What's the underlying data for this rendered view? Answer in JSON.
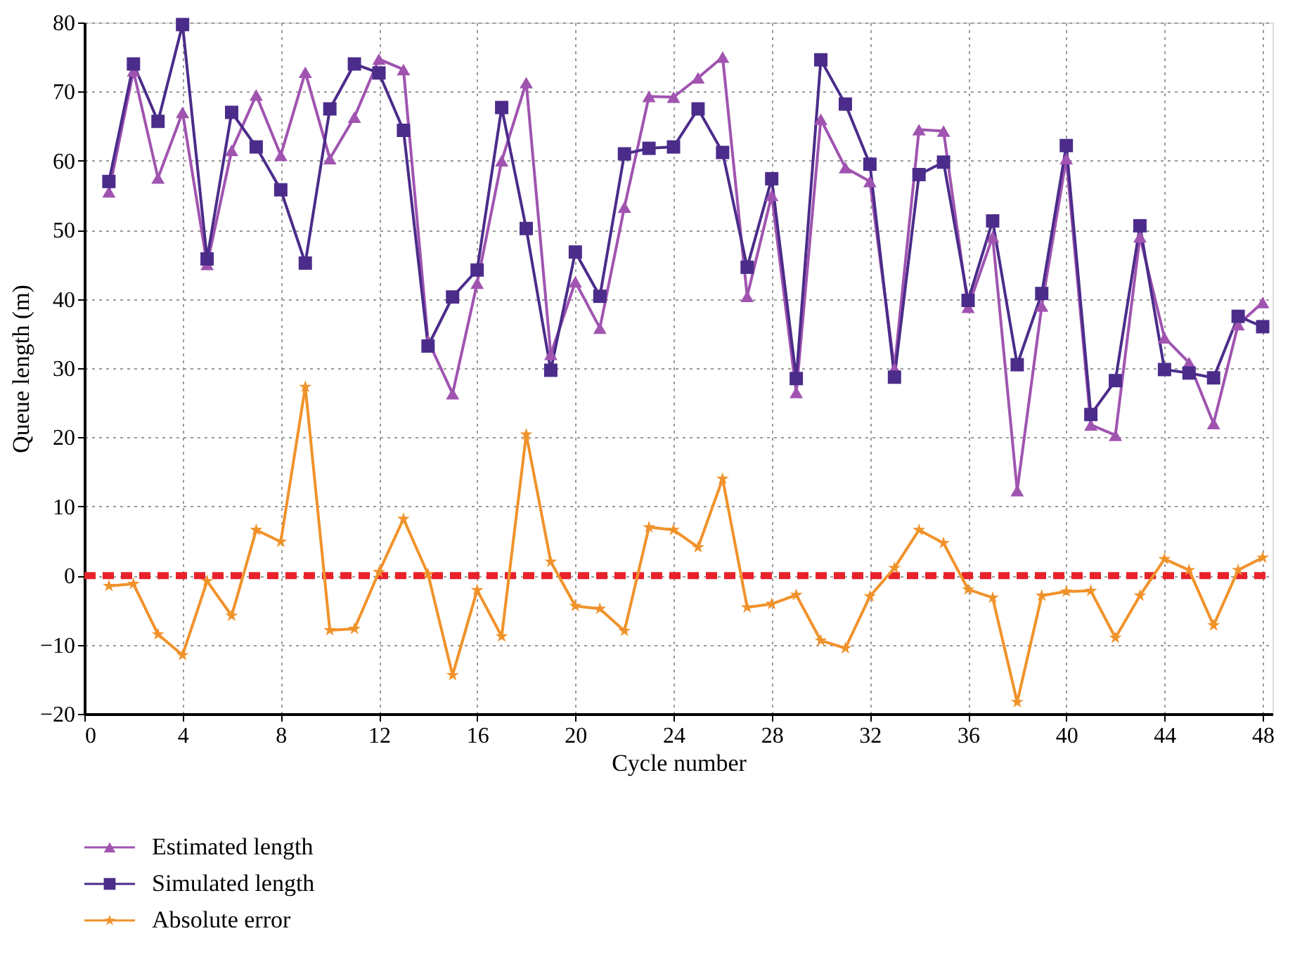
{
  "chart_data": {
    "type": "line",
    "xlabel": "Cycle number",
    "ylabel": "Queue length (m)",
    "x": [
      1,
      2,
      3,
      4,
      5,
      6,
      7,
      8,
      9,
      10,
      11,
      12,
      13,
      14,
      15,
      16,
      17,
      18,
      19,
      20,
      21,
      22,
      23,
      24,
      25,
      26,
      27,
      28,
      29,
      30,
      31,
      32,
      33,
      34,
      35,
      36,
      37,
      38,
      39,
      40,
      41,
      42,
      43,
      44,
      45,
      46,
      47,
      48
    ],
    "series": [
      {
        "name": "Estimated length",
        "color": "#a054b0",
        "marker": "triangle",
        "values": [
          55.5,
          73,
          57.5,
          67,
          45,
          61.5,
          69.5,
          60.8,
          72.8,
          60.3,
          66.3,
          74.7,
          73.2,
          34,
          26.3,
          42.3,
          60,
          71.3,
          32,
          42.5,
          35.8,
          53.3,
          69.3,
          69.2,
          72,
          75,
          40.4,
          55,
          26.5,
          66,
          59,
          57,
          30,
          64.5,
          64.3,
          38.8,
          49,
          12.3,
          39,
          60.3,
          21.8,
          20.3,
          49,
          34.4,
          30.8,
          22,
          36.3,
          39.5
        ]
      },
      {
        "name": "Simulated length",
        "color": "#4b2c8a",
        "marker": "square",
        "values": [
          57,
          74,
          65.7,
          79.7,
          45.8,
          67,
          62,
          55.8,
          45.2,
          67.5,
          74,
          72.7,
          64.4,
          33.2,
          40.3,
          44.2,
          67.7,
          50.2,
          29.7,
          46.8,
          40.4,
          61,
          61.8,
          62,
          67.5,
          61.2,
          44.6,
          57.4,
          28.5,
          74.6,
          68.2,
          59.5,
          28.7,
          58,
          59.8,
          39.8,
          51.3,
          30.5,
          40.8,
          62.2,
          23.3,
          28.2,
          50.6,
          29.8,
          29.3,
          28.6,
          37.5,
          36
        ]
      },
      {
        "name": "Absolute error",
        "color": "#f0922a",
        "marker": "star",
        "values": [
          -1.5,
          -1.2,
          -8.5,
          -11.5,
          -0.8,
          -5.8,
          6.6,
          4.9,
          27.3,
          -7.9,
          -7.7,
          0.5,
          8.2,
          0.2,
          -14.4,
          -2.1,
          -8.8,
          20.4,
          2,
          -4.4,
          -4.8,
          -8,
          7,
          6.6,
          4.1,
          14,
          -4.6,
          -4.1,
          -2.8,
          -9.4,
          -10.5,
          -3,
          1.1,
          6.6,
          4.7,
          -2,
          -3.2,
          -18.3,
          -2.9,
          -2.3,
          -2.2,
          -9,
          -2.9,
          2.4,
          0.8,
          -7.2,
          0.8,
          2.6
        ]
      }
    ],
    "ref_lines": [
      {
        "axis": "y",
        "value": 0,
        "color": "#e8212a",
        "line_style": "dashed"
      }
    ],
    "xlim": [
      0,
      48.4
    ],
    "xticks": [
      0,
      4,
      8,
      12,
      16,
      20,
      24,
      28,
      32,
      36,
      40,
      44,
      48
    ],
    "ylim": [
      -20,
      80
    ],
    "yticks": [
      -20,
      -10,
      0,
      10,
      20,
      30,
      40,
      50,
      60,
      70,
      80
    ],
    "grid": true,
    "legend": "bottom left",
    "line_style": "solid"
  }
}
